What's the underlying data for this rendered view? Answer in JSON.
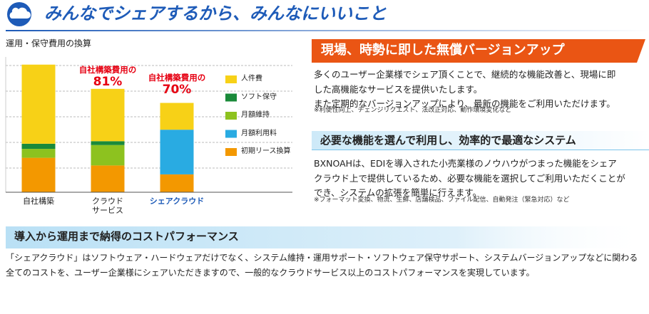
{
  "header": {
    "title": "みんなでシェアするから、みんなにいいこと"
  },
  "chart_data": {
    "type": "stacked-bar",
    "title": "運用・保守費用の換算",
    "categories": [
      "自社構築",
      "クラウド\nサービス",
      "シェアクラウド"
    ],
    "ylim": [
      0,
      106
    ],
    "series": [
      {
        "name": "初期リース換算",
        "color": "#f39800",
        "values": [
          27,
          21,
          14
        ]
      },
      {
        "name": "月額利用料",
        "color": "#29abe2",
        "values": [
          0,
          0,
          35
        ]
      },
      {
        "name": "月額維持",
        "color": "#8dc21f",
        "values": [
          7,
          16,
          0
        ]
      },
      {
        "name": "ソフト保守",
        "color": "#1a8a3a",
        "values": [
          4,
          3,
          0
        ]
      },
      {
        "name": "人件費",
        "color": "#f7d117",
        "values": [
          62,
          41,
          21
        ]
      }
    ],
    "annotations": [
      {
        "category": 1,
        "text": "自社構築費用の",
        "label": "81%"
      },
      {
        "category": 2,
        "text": "自社構築費用の",
        "label": "70%"
      }
    ]
  },
  "sections": [
    {
      "title": "現場、時勢に即した無償バージョンアップ",
      "lines": [
        "多くのユーザー企業様でシェア頂くことで、継続的な機能改善と、現場に即",
        "した高機能なサービスを提供いたします。",
        "また定期的なバージョンアップにより、最新の機能をご利用いただけます。"
      ],
      "note": "※利便性向上、チェンジリクエスト、法改正対応、動作環境変化など"
    },
    {
      "title": "必要な機能を選んで利用し、効率的で最適なシステム",
      "lines": [
        "BXNOAHは、EDIを導入された小売業様のノウハウがつまった機能をシェア",
        "クラウド上で提供しているため、必要な機能を選択してご利用いただくことが",
        "でき、システムの拡張を簡単に行えます。"
      ],
      "note": "※フォーマット変換、物流、生鮮、店舗検品、ファイル配信、自動発注（緊急対応）など"
    },
    {
      "title": "導入から運用まで納得のコストパフォーマンス",
      "lines": [
        "「シェアクラウド」はソフトウェア・ハードウェアだけでなく、システム維持・運用サポート・ソフトウェア保守サポート、システムバージョンアップなどに関わる",
        "全てのコストを、ユーザー企業様にシェアいただきますので、一般的なクラウドサービス以上のコストパフォーマンスを実現しています。"
      ]
    }
  ]
}
